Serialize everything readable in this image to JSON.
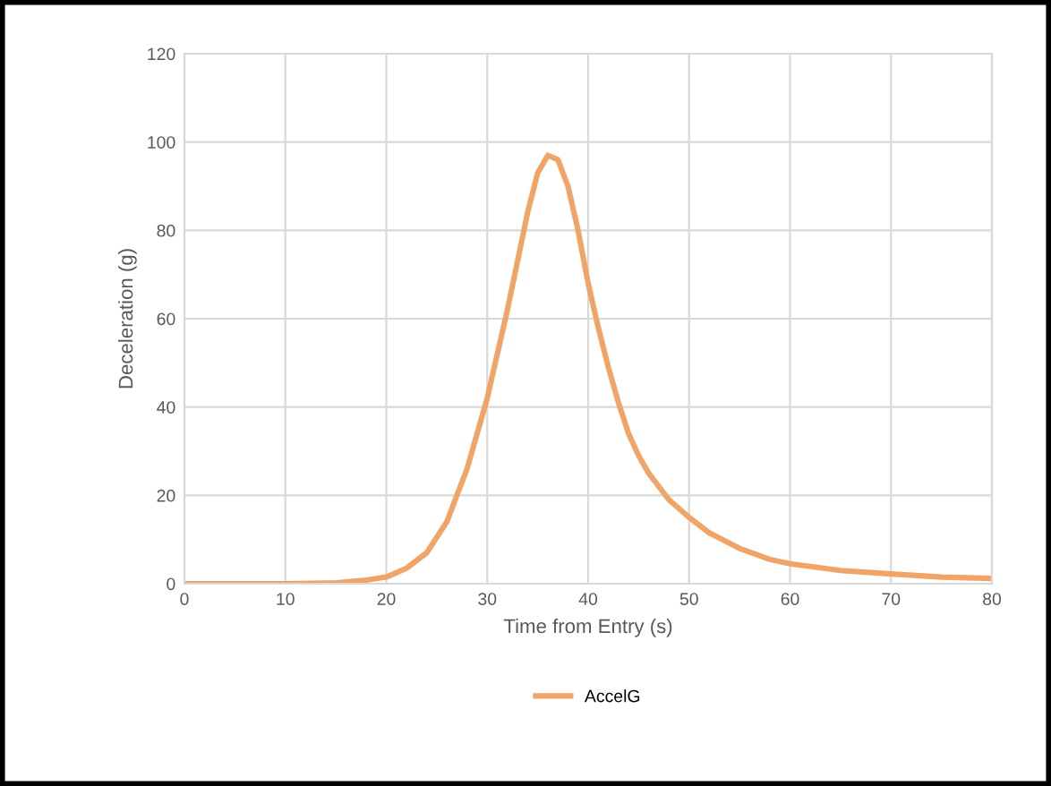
{
  "chart_data": {
    "type": "line",
    "xlabel": "Time from Entry (s)",
    "ylabel": "Deceleration (g)",
    "x": [
      0,
      10,
      15,
      18,
      20,
      22,
      24,
      26,
      28,
      30,
      32,
      34,
      35,
      36,
      37,
      38,
      39,
      40,
      41,
      42,
      43,
      44,
      45,
      46,
      48,
      50,
      52,
      55,
      58,
      60,
      65,
      70,
      75,
      80
    ],
    "series": [
      {
        "name": "AccelG",
        "color": "#f0a468",
        "values": [
          0,
          0,
          0.2,
          0.8,
          1.5,
          3.5,
          7,
          14,
          26,
          42,
          62,
          84,
          93,
          97,
          96,
          90,
          80,
          68,
          58,
          49,
          41,
          34,
          29,
          25,
          19,
          15,
          11.5,
          8,
          5.5,
          4.5,
          3,
          2.2,
          1.5,
          1.2
        ]
      }
    ],
    "xlim": [
      0,
      80
    ],
    "xticks": [
      0,
      10,
      20,
      30,
      40,
      50,
      60,
      70,
      80
    ],
    "ylim": [
      0,
      120
    ],
    "yticks": [
      0,
      20,
      40,
      60,
      80,
      100,
      120
    ],
    "grid": true,
    "legend": "bottom",
    "marker": "none",
    "line_style": "solid"
  }
}
